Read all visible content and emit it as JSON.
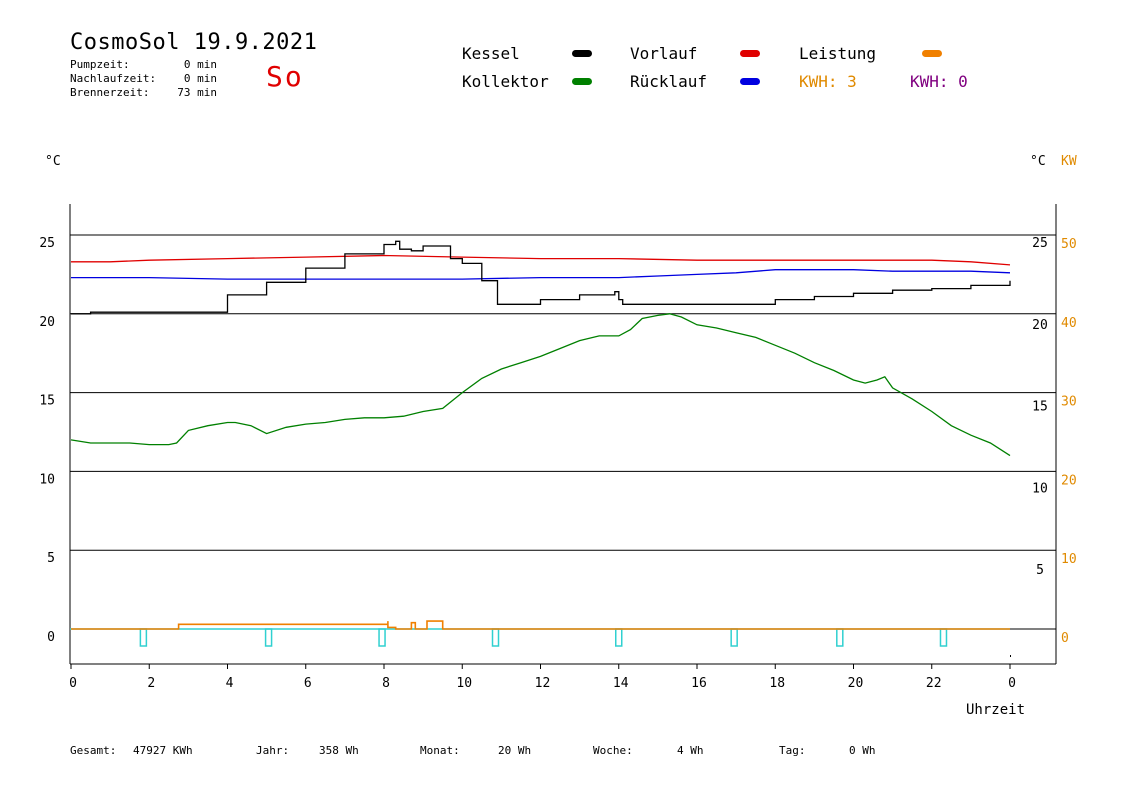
{
  "header": {
    "title": "CosmoSol 19.9.2021",
    "day": "So",
    "stats": [
      {
        "label": "Pumpzeit:",
        "value": "0 min"
      },
      {
        "label": "Nachlaufzeit:",
        "value": "0 min"
      },
      {
        "label": "Brennerzeit:",
        "value": "73 min"
      }
    ]
  },
  "legend": {
    "kessel": {
      "label": "Kessel",
      "color": "#000000"
    },
    "vorlauf": {
      "label": "Vorlauf",
      "color": "#e00000"
    },
    "leistung": {
      "label": "Leistung",
      "color": "#f08000"
    },
    "kollektor": {
      "label": "Kollektor",
      "color": "#008000"
    },
    "ruecklauf": {
      "label": "Rücklauf",
      "color": "#0000e0"
    },
    "kwh1": "KWH: 3",
    "kwh2": "KWH: 0"
  },
  "footer": {
    "gesamt_label": "Gesamt:",
    "gesamt_value": "47927 KWh",
    "jahr_label": "Jahr:",
    "jahr_value": "358 Wh",
    "monat_label": "Monat:",
    "monat_value": "20 Wh",
    "woche_label": "Woche:",
    "woche_value": "4 Wh",
    "tag_label": "Tag:",
    "tag_value": "0 Wh"
  },
  "chart_data": {
    "type": "line",
    "xlabel": "Uhrzeit",
    "ylabel_left": "°C",
    "ylabel_right_1": "°C",
    "ylabel_right_2": "KW",
    "xlim": [
      0,
      24
    ],
    "ylim": [
      -2,
      27
    ],
    "x_ticks": [
      "0",
      "2",
      "4",
      "6",
      "8",
      "10",
      "12",
      "14",
      "16",
      "18",
      "20",
      "22",
      "0"
    ],
    "y_ticks_left": [
      "0",
      "5",
      "10",
      "15",
      "20",
      "25"
    ],
    "y_ticks_right": [
      "5",
      "10",
      "15",
      "20",
      "25"
    ],
    "y_ticks_kw": [
      "0",
      "10",
      "20",
      "30",
      "40",
      "50"
    ],
    "grid_y": [
      0,
      5,
      10,
      15,
      20,
      25
    ],
    "colors": {
      "cyan": "#30d0d0"
    },
    "series": [
      {
        "name": "Kessel",
        "color": "#000000",
        "x": [
          0,
          0.5,
          2.7,
          4,
          5,
          6,
          7,
          8,
          8.3,
          8.4,
          8.7,
          9,
          9.6,
          9.7,
          10,
          10.5,
          10.8,
          10.9,
          11.5,
          12,
          13,
          13.9,
          14,
          14.1,
          15,
          16,
          17,
          17.5,
          18,
          19,
          20,
          21,
          22,
          23,
          24
        ],
        "y": [
          20.0,
          20.1,
          20.1,
          21.2,
          22.0,
          22.9,
          23.8,
          24.4,
          24.6,
          24.1,
          24.0,
          24.3,
          24.3,
          23.5,
          23.2,
          22.1,
          22.1,
          20.6,
          20.6,
          20.9,
          21.2,
          21.4,
          20.9,
          20.6,
          20.6,
          20.6,
          20.6,
          20.6,
          20.9,
          21.1,
          21.3,
          21.5,
          21.6,
          21.8,
          22.1
        ]
      },
      {
        "name": "Vorlauf",
        "color": "#e00000",
        "x": [
          0,
          1,
          2,
          4,
          6,
          8,
          10,
          12,
          14,
          16,
          18,
          20,
          22,
          23,
          24
        ],
        "y": [
          23.3,
          23.3,
          23.4,
          23.5,
          23.6,
          23.7,
          23.6,
          23.5,
          23.5,
          23.4,
          23.4,
          23.4,
          23.4,
          23.3,
          23.1
        ]
      },
      {
        "name": "Rücklauf",
        "color": "#0000e0",
        "x": [
          0,
          2,
          4,
          6,
          8,
          10,
          12,
          14,
          15,
          16,
          17,
          18,
          19,
          20,
          21,
          22,
          23,
          24
        ],
        "y": [
          22.3,
          22.3,
          22.2,
          22.2,
          22.2,
          22.2,
          22.3,
          22.3,
          22.4,
          22.5,
          22.6,
          22.8,
          22.8,
          22.8,
          22.7,
          22.7,
          22.7,
          22.6
        ]
      },
      {
        "name": "Kollektor",
        "color": "#008000",
        "x": [
          0,
          0.5,
          1,
          1.5,
          2,
          2.5,
          2.7,
          3,
          3.5,
          4,
          4.2,
          4.6,
          5,
          5.5,
          6,
          6.5,
          7,
          7.5,
          8,
          8.5,
          9,
          9.5,
          10,
          10.5,
          11,
          11.5,
          12,
          12.5,
          13,
          13.5,
          14,
          14.3,
          14.6,
          15,
          15.3,
          15.6,
          16,
          16.5,
          17,
          17.5,
          18,
          18.5,
          19,
          19.5,
          20,
          20.3,
          20.6,
          20.8,
          21,
          21.5,
          22,
          22.5,
          23,
          23.5,
          24
        ],
        "y": [
          12.0,
          11.8,
          11.8,
          11.8,
          11.7,
          11.7,
          11.8,
          12.6,
          12.9,
          13.1,
          13.1,
          12.9,
          12.4,
          12.8,
          13.0,
          13.1,
          13.3,
          13.4,
          13.4,
          13.5,
          13.8,
          14.0,
          15.0,
          15.9,
          16.5,
          16.9,
          17.3,
          17.8,
          18.3,
          18.6,
          18.6,
          19.0,
          19.7,
          19.9,
          20.0,
          19.8,
          19.3,
          19.1,
          18.8,
          18.5,
          18.0,
          17.5,
          16.9,
          16.4,
          15.8,
          15.6,
          15.8,
          16.0,
          15.3,
          14.6,
          13.8,
          12.9,
          12.3,
          11.8,
          11.0
        ]
      },
      {
        "name": "Leistung",
        "color": "#f08000",
        "x": [
          0,
          2.75,
          2.75,
          7.9,
          8.1,
          8.1,
          8.3,
          8.3,
          8.5,
          8.7,
          8.7,
          8.8,
          9.1,
          9.1,
          9.5,
          9.5,
          24
        ],
        "y": [
          0,
          0,
          0.3,
          0.3,
          0.5,
          0.1,
          0.1,
          0,
          0,
          0,
          0.4,
          0,
          0,
          0.5,
          0.5,
          0,
          0
        ]
      }
    ]
  }
}
